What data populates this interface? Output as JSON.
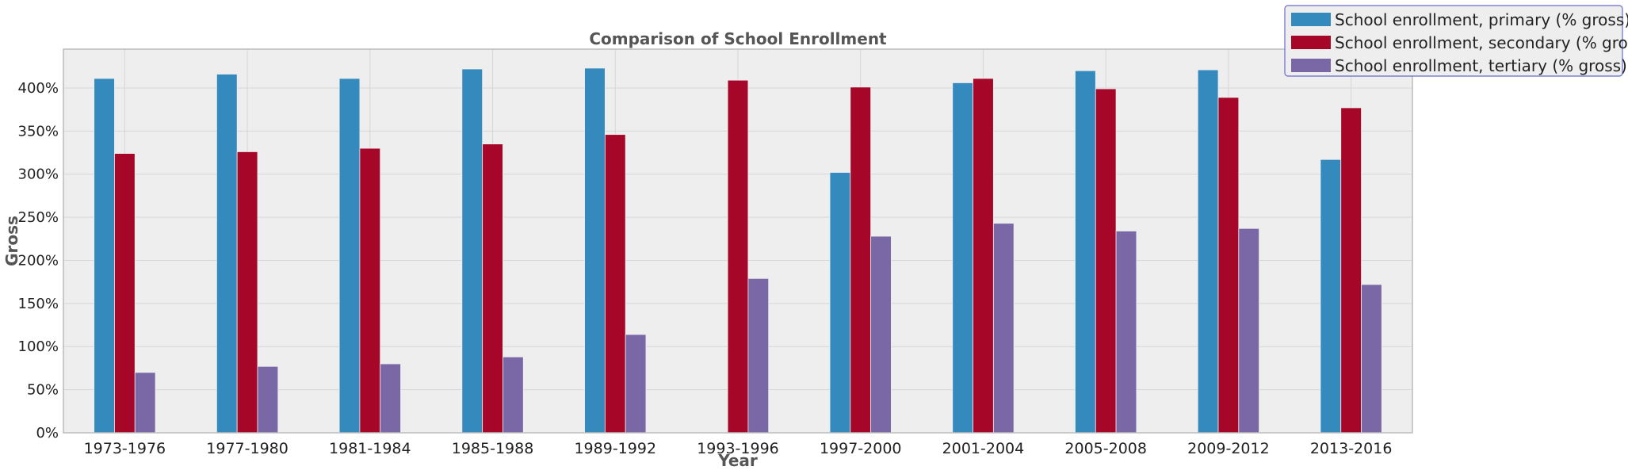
{
  "chart_data": {
    "type": "bar",
    "title": "Comparison of School Enrollment",
    "xlabel": "Year",
    "ylabel": "Gross",
    "categories": [
      "1973-1976",
      "1977-1980",
      "1981-1984",
      "1985-1988",
      "1989-1992",
      "1993-1996",
      "1997-2000",
      "2001-2004",
      "2005-2008",
      "2009-2012",
      "2013-2016"
    ],
    "series": [
      {
        "name": "School enrollment, primary (% gross)",
        "color": "#348ABD",
        "values": [
          411,
          416,
          411,
          422,
          423,
          0,
          302,
          406,
          420,
          421,
          317
        ]
      },
      {
        "name": "School enrollment, secondary (% gross)",
        "color": "#A60628",
        "values": [
          324,
          326,
          330,
          335,
          346,
          409,
          401,
          411,
          399,
          389,
          377
        ]
      },
      {
        "name": "School enrollment, tertiary (% gross)",
        "color": "#7A68A6",
        "values": [
          70,
          77,
          80,
          88,
          114,
          179,
          228,
          243,
          234,
          237,
          172
        ]
      }
    ],
    "yticks": [
      0,
      50,
      100,
      150,
      200,
      250,
      300,
      350,
      400
    ],
    "ytick_labels": [
      "0%",
      "50%",
      "100%",
      "150%",
      "200%",
      "250%",
      "300%",
      "350%",
      "400%"
    ],
    "ylim": [
      0,
      445
    ],
    "grid": true,
    "legend_position": "top-right"
  }
}
